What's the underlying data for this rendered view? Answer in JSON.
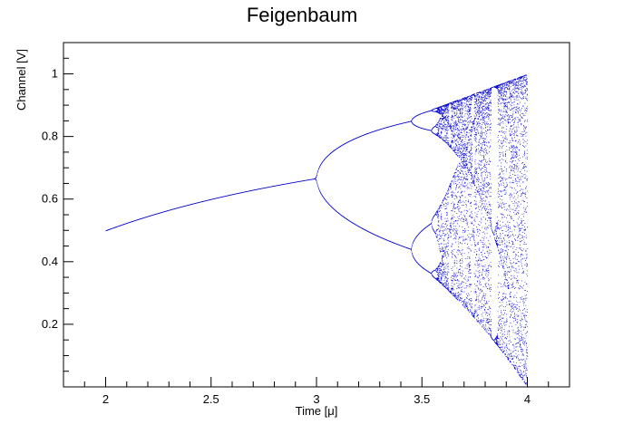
{
  "chart_data": {
    "type": "scatter",
    "title": "Feigenbaum",
    "xlabel": "Time [μ]",
    "ylabel": "Channel [V]",
    "xlim": [
      1.8,
      4.2
    ],
    "ylim": [
      0.0,
      1.1
    ],
    "x_ticks": [
      2,
      2.5,
      3,
      3.5,
      4
    ],
    "x_tick_labels": [
      "2",
      "2.5",
      "3",
      "3.5",
      "4"
    ],
    "y_ticks": [
      0.2,
      0.4,
      0.6,
      0.8,
      1.0
    ],
    "y_tick_labels": [
      "0.2",
      "0.4",
      "0.6",
      "0.8",
      "1"
    ],
    "grid": false,
    "legend": "none",
    "colors": {
      "series": "#0000cc",
      "axis": "#000000"
    },
    "series": [
      {
        "function": "x_{n+1} = r * x_n * (1 - x_n)",
        "x_range": [
          2.0,
          4.0
        ],
        "x0": 0.5
      }
    ]
  }
}
